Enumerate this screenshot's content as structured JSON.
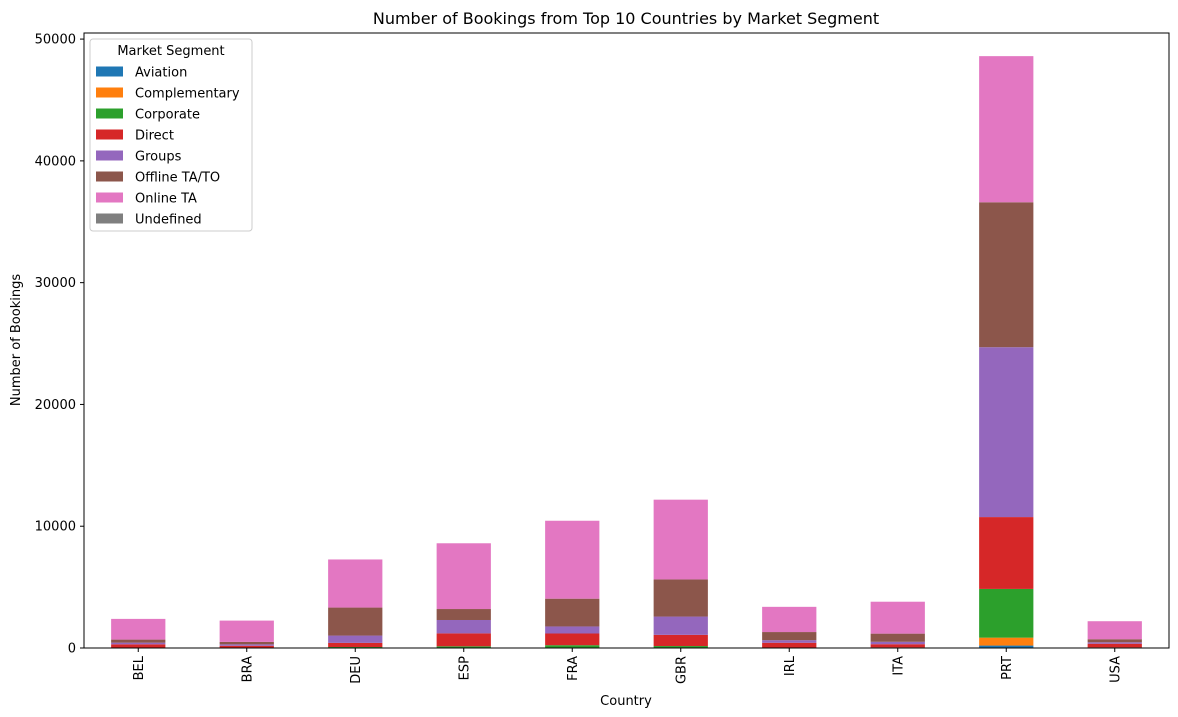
{
  "chart_data": {
    "type": "bar",
    "stacked": true,
    "title": "Number of Bookings from Top 10 Countries by Market Segment",
    "xlabel": "Country",
    "ylabel": "Number of Bookings",
    "ylim": [
      0,
      50500
    ],
    "yticks": [
      0,
      10000,
      20000,
      30000,
      40000,
      50000
    ],
    "ytick_labels": [
      "0",
      "10000",
      "20000",
      "30000",
      "40000",
      "50000"
    ],
    "categories": [
      "BEL",
      "BRA",
      "DEU",
      "ESP",
      "FRA",
      "GBR",
      "IRL",
      "ITA",
      "PRT",
      "USA"
    ],
    "grid": false,
    "legend": {
      "title": "Market Segment",
      "placement": "top-left"
    },
    "series": [
      {
        "name": "Aviation",
        "color": "#1f77b4",
        "values": [
          0,
          0,
          0,
          10,
          10,
          10,
          0,
          0,
          200,
          0
        ]
      },
      {
        "name": "Complementary",
        "color": "#ff7f0e",
        "values": [
          10,
          10,
          20,
          30,
          20,
          30,
          10,
          10,
          650,
          10
        ]
      },
      {
        "name": "Corporate",
        "color": "#2ca02c",
        "values": [
          30,
          20,
          60,
          100,
          200,
          120,
          20,
          40,
          4000,
          40
        ]
      },
      {
        "name": "Direct",
        "color": "#d62728",
        "values": [
          260,
          150,
          340,
          1060,
          960,
          920,
          400,
          260,
          5900,
          300
        ]
      },
      {
        "name": "Groups",
        "color": "#9467bd",
        "values": [
          140,
          120,
          600,
          1100,
          580,
          1500,
          210,
          200,
          13950,
          120
        ]
      },
      {
        "name": "Offline TA/TO",
        "color": "#8c564b",
        "values": [
          250,
          200,
          2300,
          900,
          2280,
          3050,
          670,
          670,
          11900,
          250
        ]
      },
      {
        "name": "Online TA",
        "color": "#e377c2",
        "values": [
          1700,
          1750,
          3950,
          5400,
          6400,
          6550,
          2070,
          2620,
          12000,
          1480
        ]
      },
      {
        "name": "Undefined",
        "color": "#7f7f7f",
        "values": [
          0,
          0,
          0,
          0,
          0,
          0,
          0,
          0,
          0,
          0
        ]
      }
    ]
  }
}
